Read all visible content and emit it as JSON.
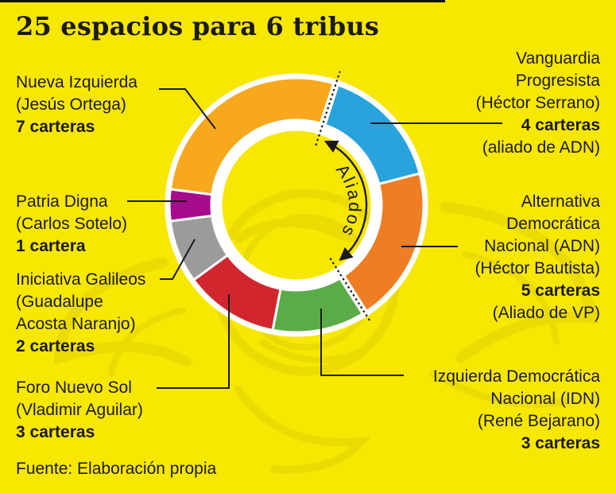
{
  "title": "25 espacios para 6 tribus",
  "source": "Fuente: Elaboración propia",
  "colors": {
    "background": "#F8E700",
    "text": "#1A1A1A",
    "watermark": "#E2D200",
    "separator": "#FFFFFF"
  },
  "chart_data": {
    "type": "pie",
    "variant": "donut",
    "title": "25 espacios para 6 tribus",
    "total_units": 25,
    "unit": "carteras",
    "start_angle_deg": 18,
    "annotation": "Aliados",
    "alliance_between": [
      "Vanguardia Progresista",
      "Alternativa Democrática Nacional (ADN)"
    ],
    "segments": [
      {
        "party": "Vanguardia Progresista",
        "person": "Héctor Serrano",
        "value": 4,
        "color": "#29A3DC",
        "note": "aliado de ADN"
      },
      {
        "party": "Alternativa Democrática Nacional (ADN)",
        "person": "Héctor Bautista",
        "value": 5,
        "color": "#EE7D23",
        "note": "Aliado de VP"
      },
      {
        "party": "Izquierda Democrática Nacional (IDN)",
        "person": "René Bejarano",
        "value": 3,
        "color": "#5BAC49",
        "note": ""
      },
      {
        "party": "Foro Nuevo Sol",
        "person": "Vladimir Aguilar",
        "value": 3,
        "color": "#D2262E",
        "note": ""
      },
      {
        "party": "Iniciativa Galileos",
        "person": "Guadalupe Acosta Naranjo",
        "value": 2,
        "color": "#9B9B9B",
        "note": ""
      },
      {
        "party": "Patria Digna",
        "person": "Carlos Sotelo",
        "value": 1,
        "color": "#A60B8C",
        "note": ""
      },
      {
        "party": "Nueva Izquierda",
        "person": "Jesús Ortega",
        "value": 7,
        "color": "#F8A81D",
        "note": ""
      }
    ]
  },
  "callouts": {
    "nueva_izquierda": {
      "lines": [
        "Nueva Izquierda",
        "(Jesús Ortega)"
      ],
      "value": "7 carteras"
    },
    "patria_digna": {
      "lines": [
        "Patria Digna",
        "(Carlos Sotelo)"
      ],
      "value": "1 cartera"
    },
    "iniciativa_galileos": {
      "lines": [
        "Iniciativa Galileos",
        "(Guadalupe",
        "Acosta Naranjo)"
      ],
      "value": "2 carteras"
    },
    "foro_nuevo_sol": {
      "lines": [
        "Foro Nuevo Sol",
        "(Vladimir Aguilar)"
      ],
      "value": "3 carteras"
    },
    "vanguardia_progresista": {
      "lines": [
        "Vanguardia",
        "Progresista",
        "(Héctor Serrano)"
      ],
      "value": "4 carteras",
      "note": "(aliado de ADN)"
    },
    "adn": {
      "lines": [
        "Alternativa",
        "Democrática",
        "Nacional (ADN)",
        "(Héctor Bautista)"
      ],
      "value": "5 carteras",
      "note": "(Aliado de VP)"
    },
    "idn": {
      "lines": [
        "Izquierda Democrática",
        "Nacional (IDN)",
        "(René Bejarano)"
      ],
      "value": "3 carteras"
    }
  }
}
